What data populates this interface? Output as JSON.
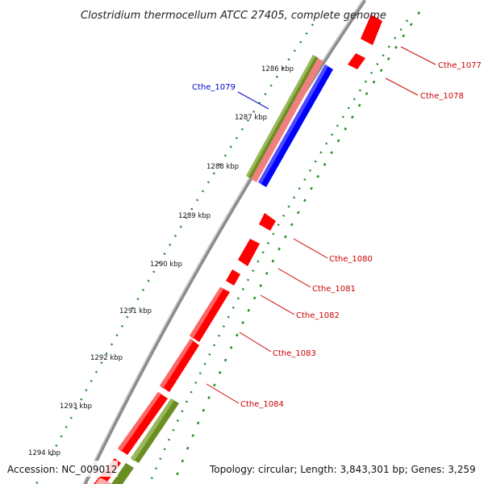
{
  "title": "Clostridium thermocellum ATCC 27405, complete genome",
  "footer": {
    "accession": "Accession: NC_009012",
    "topology": "Topology: circular; Length: 3,843,301 bp; Genes: 3,259"
  },
  "kbp_labels": [
    "1286 kbp",
    "1287 kbp",
    "1288 kbp",
    "1289 kbp",
    "1290 kbp",
    "1291 kbp",
    "1292 kbp",
    "1293 kbp",
    "1294 kbp"
  ],
  "gene_labels": [
    {
      "name": "Cthe_1077",
      "color": "#cc0000"
    },
    {
      "name": "Cthe_1078",
      "color": "#cc0000"
    },
    {
      "name": "Cthe_1079",
      "color": "#0000cc"
    },
    {
      "name": "Cthe_1080",
      "color": "#cc0000"
    },
    {
      "name": "Cthe_1081",
      "color": "#cc0000"
    },
    {
      "name": "Cthe_1082",
      "color": "#cc0000"
    },
    {
      "name": "Cthe_1083",
      "color": "#cc0000"
    },
    {
      "name": "Cthe_1084",
      "color": "#cc0000"
    }
  ],
  "colors": {
    "cds": "#ff0000",
    "rna": "#0000ff",
    "gene": "#6b8e23",
    "pseudo": "#f08080",
    "backbone": "#8c8c8c",
    "ticks": "#228b22"
  }
}
